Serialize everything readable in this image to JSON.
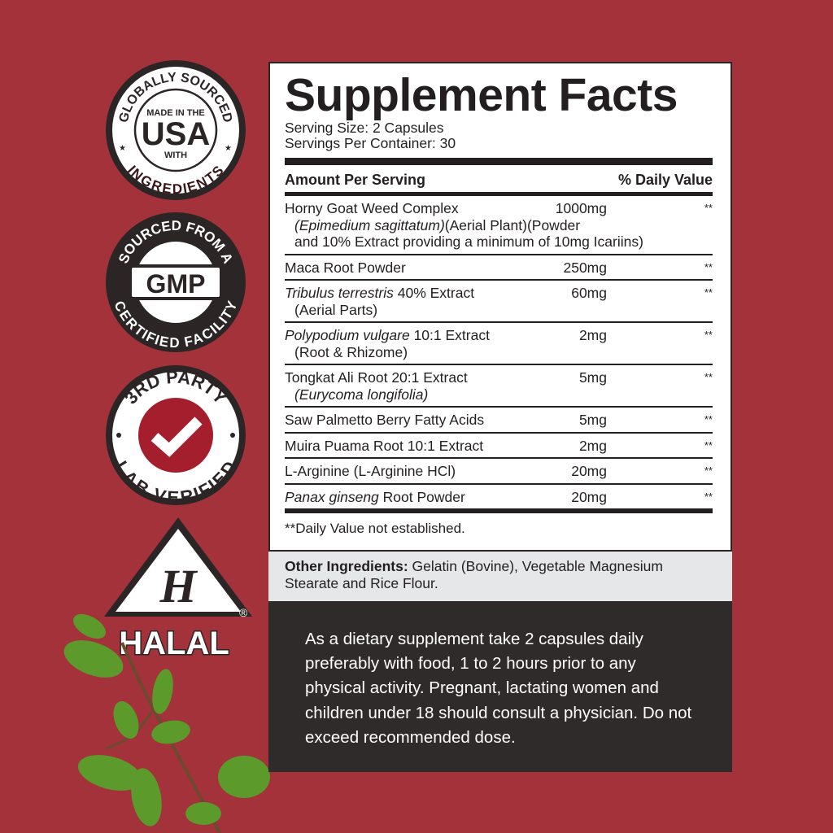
{
  "colors": {
    "background": "#a3323a",
    "panel_border": "#2b2526",
    "dark_box": "#302b2b",
    "check_red": "#a51e2d"
  },
  "badges": [
    {
      "top": "GLOBALLY SOURCED",
      "line1": "MADE IN THE",
      "big": "USA",
      "line2": "WITH",
      "bottom": "INGREDIENTS"
    },
    {
      "top": "SOURCED FROM A",
      "big": "GMP",
      "bottom": "CERTIFIED FACILITY"
    },
    {
      "top": "3RD PARTY",
      "bottom": "LAB VERIFIED",
      "icon": "check-icon"
    },
    {
      "logo": "H",
      "label": "HALAL",
      "reg": "®"
    }
  ],
  "facts": {
    "title": "Supplement Facts",
    "serving_size": "Serving Size: 2 Capsules",
    "servings_per_container": "Servings Per Container: 30",
    "header_left": "Amount Per Serving",
    "header_right": "% Daily Value",
    "rows": [
      {
        "name": "Horny Goat Weed Complex",
        "amount": "1000mg",
        "dv": "**",
        "sub_italic": "(Epimedium sagittatum)",
        "sub": "(Aerial Plant)(Powder",
        "sub2": "and 10% Extract providing a minimum of 10mg Icariins)"
      },
      {
        "name": "Maca Root Powder",
        "amount": "250mg",
        "dv": "**"
      },
      {
        "name_italic": "Tribulus terrestris",
        "name": " 40% Extract",
        "amount": "60mg",
        "dv": "**",
        "sub": "(Aerial Parts)"
      },
      {
        "name_italic": "Polypodium vulgare",
        "name": " 10:1 Extract",
        "amount": "2mg",
        "dv": "**",
        "sub": "(Root & Rhizome)"
      },
      {
        "name": "Tongkat Ali Root 20:1 Extract",
        "amount": "5mg",
        "dv": "**",
        "sub_italic": "(Eurycoma longifolia)"
      },
      {
        "name": "Saw Palmetto Berry Fatty Acids",
        "amount": "5mg",
        "dv": "**"
      },
      {
        "name": "Muira Puama Root 10:1 Extract",
        "amount": "2mg",
        "dv": "**"
      },
      {
        "name": "L-Arginine (L-Arginine HCl)",
        "amount": "20mg",
        "dv": "**"
      },
      {
        "name_italic": "Panax ginseng",
        "name": " Root Powder",
        "amount": "20mg",
        "dv": "**"
      }
    ],
    "footnote": "**Daily Value not established."
  },
  "other_ingredients": {
    "label": "Other Ingredients:",
    "text": " Gelatin (Bovine), Vegetable Magnesium Stearate and Rice Flour."
  },
  "directions": "As a dietary supplement take 2 capsules daily preferably with food, 1 to 2 hours prior to any physical activity. Pregnant, lactating women and children under 18 should consult a physician. Do not exceed recommended dose."
}
